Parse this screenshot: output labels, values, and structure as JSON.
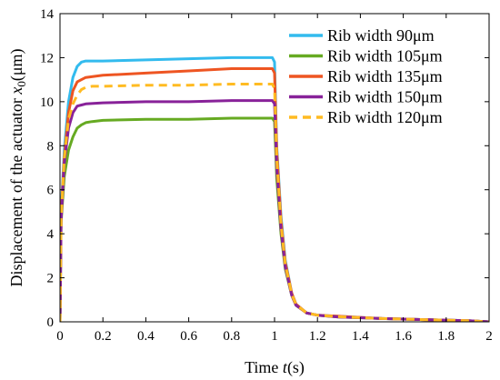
{
  "chart_data": {
    "type": "line",
    "title": "",
    "xlabel": "Time t(s)",
    "ylabel": "Displacement of the actuator x0(μm)",
    "xlabel_parts": {
      "prefix": "Time ",
      "var": "t",
      "suffix": "(s)"
    },
    "ylabel_parts": {
      "prefix": "Displacement of the actuator ",
      "var": "x",
      "sub": "0",
      "suffix": "(μm)"
    },
    "xlim": [
      0,
      2
    ],
    "ylim": [
      0,
      14
    ],
    "xticks": [
      0,
      0.2,
      0.4,
      0.6,
      0.8,
      1,
      1.2,
      1.4,
      1.6,
      1.8,
      2
    ],
    "xtick_labels": [
      "0",
      "0.2",
      "0.4",
      "0.6",
      "0.8",
      "1",
      "1.2",
      "1.4",
      "1.6",
      "1.8",
      "2"
    ],
    "yticks": [
      0,
      2,
      4,
      6,
      8,
      10,
      12,
      14
    ],
    "ytick_labels": [
      "0",
      "2",
      "4",
      "6",
      "8",
      "10",
      "12",
      "14"
    ],
    "grid": false,
    "legend_position": "top-right",
    "series": [
      {
        "name": "Rib width 90μm",
        "color": "#33bbee",
        "dash": false,
        "x": [
          0,
          0.005,
          0.02,
          0.04,
          0.06,
          0.08,
          0.1,
          0.12,
          0.2,
          0.4,
          0.6,
          0.8,
          0.99,
          1.0,
          1.01,
          1.03,
          1.05,
          1.08,
          1.1,
          1.15,
          1.2,
          1.3,
          1.5,
          1.7,
          1.9,
          2.0
        ],
        "y": [
          0,
          5.0,
          7.8,
          10.0,
          11.1,
          11.6,
          11.8,
          11.85,
          11.85,
          11.9,
          11.95,
          12.0,
          12.0,
          11.8,
          8.0,
          4.8,
          2.8,
          1.3,
          0.8,
          0.4,
          0.3,
          0.25,
          0.15,
          0.1,
          0.05,
          0.0
        ]
      },
      {
        "name": "Rib width 105μm",
        "color": "#66aa22",
        "dash": false,
        "x": [
          0,
          0.005,
          0.02,
          0.04,
          0.06,
          0.08,
          0.1,
          0.12,
          0.15,
          0.2,
          0.4,
          0.6,
          0.8,
          0.99,
          1.0,
          1.01,
          1.03,
          1.05,
          1.08,
          1.1,
          1.15,
          1.2,
          1.3,
          1.5,
          1.7,
          1.9,
          2.0
        ],
        "y": [
          0,
          4.5,
          6.6,
          7.8,
          8.4,
          8.8,
          8.95,
          9.05,
          9.1,
          9.15,
          9.2,
          9.2,
          9.25,
          9.25,
          9.1,
          6.5,
          4.0,
          2.4,
          1.2,
          0.75,
          0.4,
          0.3,
          0.22,
          0.15,
          0.1,
          0.05,
          0.0
        ]
      },
      {
        "name": "Rib width 135μm",
        "color": "#ee5522",
        "dash": false,
        "x": [
          0,
          0.005,
          0.02,
          0.04,
          0.06,
          0.08,
          0.1,
          0.12,
          0.2,
          0.4,
          0.6,
          0.8,
          0.99,
          1.0,
          1.01,
          1.03,
          1.05,
          1.08,
          1.1,
          1.15,
          1.2,
          1.3,
          1.5,
          1.7,
          1.9,
          2.0
        ],
        "y": [
          0,
          4.8,
          7.5,
          9.5,
          10.5,
          10.9,
          11.0,
          11.1,
          11.2,
          11.3,
          11.4,
          11.5,
          11.5,
          11.3,
          7.8,
          4.6,
          2.7,
          1.3,
          0.8,
          0.4,
          0.3,
          0.25,
          0.15,
          0.1,
          0.05,
          0.0
        ]
      },
      {
        "name": "Rib width 150μm",
        "color": "#882299",
        "dash": false,
        "x": [
          0,
          0.005,
          0.02,
          0.04,
          0.06,
          0.08,
          0.1,
          0.12,
          0.2,
          0.4,
          0.6,
          0.8,
          0.99,
          1.0,
          1.01,
          1.03,
          1.05,
          1.08,
          1.1,
          1.15,
          1.2,
          1.3,
          1.5,
          1.7,
          1.9,
          2.0
        ],
        "y": [
          0,
          4.6,
          7.2,
          8.8,
          9.5,
          9.8,
          9.85,
          9.9,
          9.95,
          10.0,
          10.0,
          10.05,
          10.05,
          9.9,
          7.0,
          4.2,
          2.5,
          1.2,
          0.75,
          0.4,
          0.3,
          0.22,
          0.15,
          0.1,
          0.05,
          0.0
        ]
      },
      {
        "name": "Rib width 120μm",
        "color": "#ffbb22",
        "dash": true,
        "x": [
          0,
          0.005,
          0.02,
          0.04,
          0.06,
          0.08,
          0.1,
          0.12,
          0.15,
          0.2,
          0.4,
          0.6,
          0.8,
          0.99,
          1.0,
          1.01,
          1.03,
          1.05,
          1.08,
          1.1,
          1.15,
          1.2,
          1.3,
          1.5,
          1.7,
          1.9,
          2.0
        ],
        "y": [
          0,
          4.7,
          7.4,
          9.2,
          9.9,
          10.3,
          10.55,
          10.65,
          10.7,
          10.7,
          10.75,
          10.75,
          10.8,
          10.8,
          10.6,
          7.4,
          4.4,
          2.6,
          1.25,
          0.78,
          0.4,
          0.3,
          0.23,
          0.15,
          0.1,
          0.05,
          0.0
        ]
      }
    ]
  }
}
